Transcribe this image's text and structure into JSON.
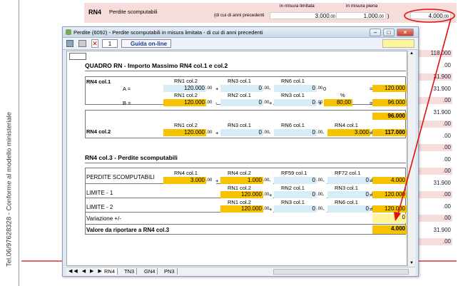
{
  "page": {
    "side_text": "Tel.06/97628328 - Conforme al modello ministeriale"
  },
  "bg": {
    "rn4_code": "RN4",
    "rn4_desc": "Perdite scomputabili",
    "sub_limitata": "in misura limitata",
    "sub_piena": "in misura piena",
    "anni_prec": "(di cui di anni precedenti",
    "val_limitata": "3.000",
    "val_piena": "1.000",
    "val_total": "4.000",
    "right_values": [
      "118.000",
      ".00",
      "31.900",
      "31.900",
      ".00",
      "31.900",
      ".00",
      ".00",
      ".00",
      ".00",
      ".00",
      "31.900",
      ".00",
      ".00",
      ".00",
      "31.900",
      ".00"
    ]
  },
  "window": {
    "title": "Perdite (6092) - Perdite scomputabili in misura limitata - di cui di anni precedenti",
    "record": "1",
    "help_label": "Guida on-line",
    "section1_title": "QUADRO RN - Importo Massimo RN4 col.1 e col.2",
    "rn4_col1": "RN4 col.1",
    "rn4_col2": "RN4 col.2",
    "a_label": "A =",
    "b_label": "B =",
    "a_headers": [
      "RN1 col.2",
      "RN3 col.1",
      "RN6 col.1"
    ],
    "a_values": [
      "120.000",
      ".00",
      "0",
      ".00",
      "0",
      ".00"
    ],
    "a_zero": "0",
    "a_result": "120.000",
    "b_headers": [
      "RN1 col.2",
      "RN2 col.1",
      "RN3 col.1",
      "%"
    ],
    "b_values": [
      "120.000",
      ".00",
      "0",
      ".00",
      "0",
      ".00",
      "80,00"
    ],
    "b_result": "96.000",
    "min_result": "96.000",
    "c2_headers": [
      "RN1 col.2",
      "RN3 col.1",
      "RN6 col.1",
      "RN4 col.1"
    ],
    "c2_values": [
      "120.000",
      ".00",
      "0",
      ".00",
      "0",
      ".00",
      "3.000",
      ".00"
    ],
    "c2_result": "117.000",
    "section2_title": "RN4 col.3 - Perdite scomputabili",
    "ps_label": "PERDITE SCOMPUTABILI",
    "ps_headers": [
      "RN4 col.1",
      "RN4 col.2",
      "RF59 col.1",
      "RF72 col.1"
    ],
    "ps_values": [
      "3.000",
      ".00",
      "1.000",
      ".00",
      "0",
      ".00",
      "0",
      ".00"
    ],
    "ps_result": "4.000",
    "lim1_label": "LIMITE - 1",
    "lim1_headers": [
      "RN1 col.2",
      "RN2 col.1",
      "RN3 col.1"
    ],
    "lim1_values": [
      "120.000",
      ".00",
      "0",
      ".00",
      "0",
      ".00"
    ],
    "lim1_result": "120.000",
    "lim2_label": "LIMITE - 2",
    "lim2_headers": [
      "RN1 col.2",
      "RN3 col.1",
      "RN6 col.1"
    ],
    "lim2_values": [
      "120.000",
      ".00",
      "0",
      ".00",
      "0",
      ".00"
    ],
    "lim2_result": "120.000",
    "var_label": "Variazione +/-",
    "var_value": "0",
    "final_label": "Valore da riportare a RN4 col.3",
    "final_value": "4.000",
    "tabs": [
      "RN4",
      "TN3",
      "GN4",
      "PN3"
    ]
  }
}
